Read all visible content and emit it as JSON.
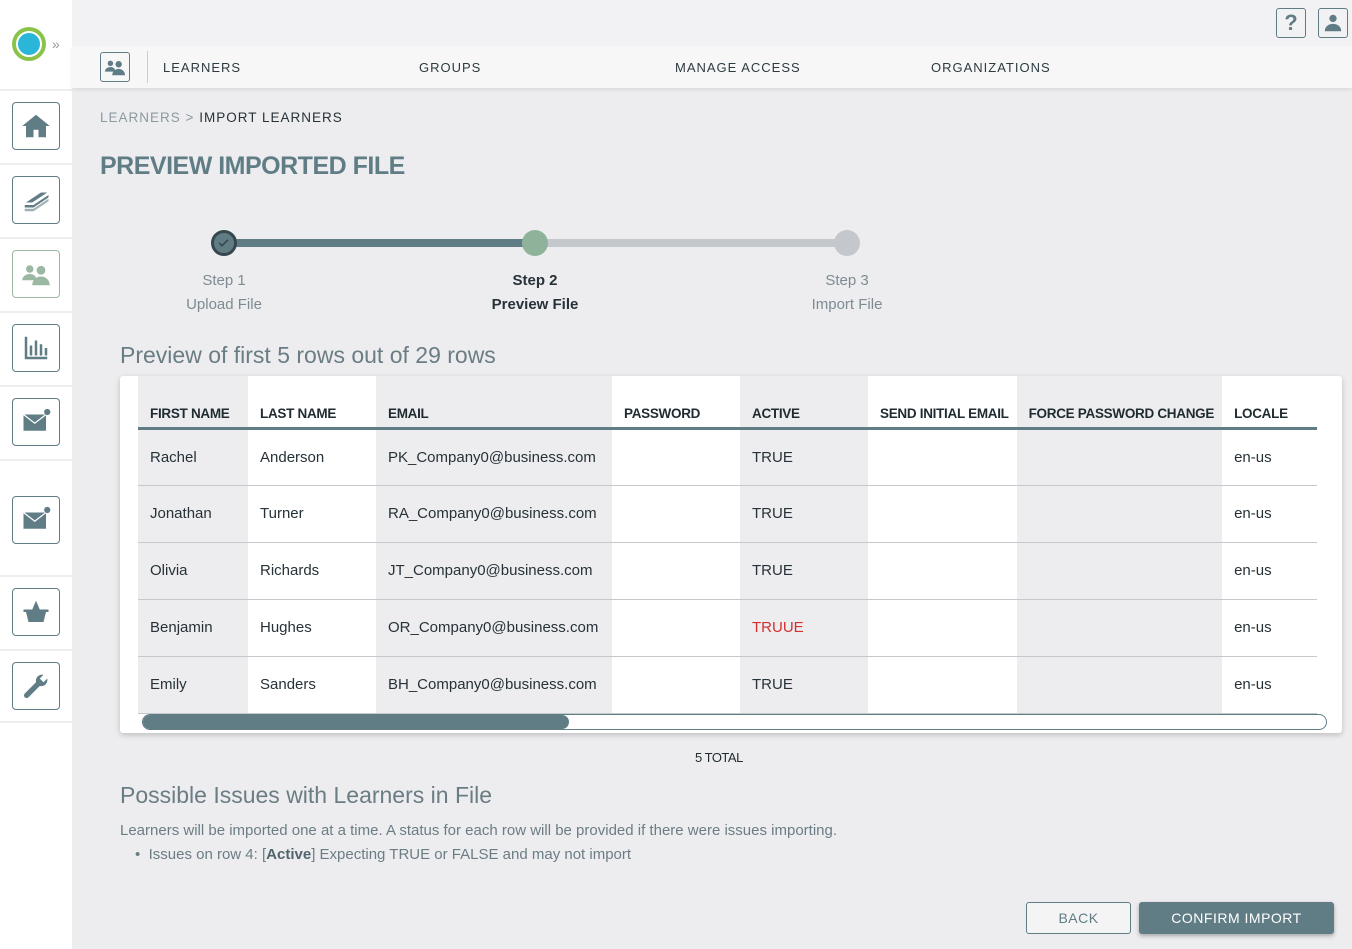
{
  "nav": {
    "items": [
      "LEARNERS",
      "GROUPS",
      "MANAGE ACCESS",
      "ORGANIZATIONS"
    ]
  },
  "topbar": {
    "help": "?"
  },
  "breadcrumb": {
    "parent": "LEARNERS",
    "sep": ">",
    "current": "IMPORT LEARNERS"
  },
  "page_title": "PREVIEW IMPORTED FILE",
  "steps": [
    {
      "num": "Step 1",
      "label": "Upload File",
      "state": "complete"
    },
    {
      "num": "Step 2",
      "label": "Preview File",
      "state": "current"
    },
    {
      "num": "Step 3",
      "label": "Import File",
      "state": "pending"
    }
  ],
  "colors": {
    "accent": "#607d86",
    "step_current": "#8fb39a",
    "error": "#d32f2f"
  },
  "preview": {
    "title": "Preview of first 5 rows out of 29 rows",
    "columns": [
      "FIRST NAME",
      "LAST NAME",
      "EMAIL",
      "PASSWORD",
      "ACTIVE",
      "SEND INITIAL EMAIL",
      "FORCE PASSWORD CHANGE",
      "LOCALE"
    ],
    "rows": [
      [
        "Rachel",
        "Anderson",
        "PK_Company0@business.com",
        "",
        "TRUE",
        "",
        "",
        "en-us"
      ],
      [
        "Jonathan",
        "Turner",
        "RA_Company0@business.com",
        "",
        "TRUE",
        "",
        "",
        "en-us"
      ],
      [
        "Olivia",
        "Richards",
        "JT_Company0@business.com",
        "",
        "TRUE",
        "",
        "",
        "en-us"
      ],
      [
        "Benjamin",
        "Hughes",
        "OR_Company0@business.com",
        "",
        "TRUUE",
        "",
        "",
        "en-us"
      ],
      [
        "Emily",
        "Sanders",
        "BH_Company0@business.com",
        "",
        "TRUE",
        "",
        "",
        "en-us"
      ]
    ],
    "error_cell": {
      "row": 3,
      "col": 4
    },
    "scroll_fraction": 0.36,
    "total": "5 TOTAL"
  },
  "issues": {
    "title": "Possible Issues with Learners in File",
    "description": "Learners will be imported one at a time. A status for each row will be provided if there were issues importing.",
    "items": [
      {
        "prefix": "Issues on row 4: [",
        "field": "Active",
        "suffix": "] Expecting TRUE or FALSE and may not import"
      }
    ]
  },
  "buttons": {
    "back": "BACK",
    "confirm": "CONFIRM IMPORT"
  }
}
